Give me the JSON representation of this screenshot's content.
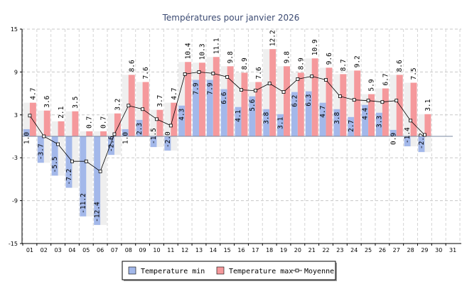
{
  "chart_data": {
    "type": "bar",
    "title": "Températures pour janvier 2026",
    "xlabel": "",
    "ylabel": "",
    "categories": [
      "01",
      "02",
      "03",
      "04",
      "05",
      "06",
      "07",
      "08",
      "09",
      "10",
      "11",
      "12",
      "13",
      "14",
      "15",
      "16",
      "17",
      "18",
      "19",
      "20",
      "21",
      "22",
      "23",
      "24",
      "25",
      "26",
      "27",
      "28",
      "29",
      "30",
      "31"
    ],
    "ylim": [
      -15,
      15
    ],
    "yticks": [
      -15,
      -9,
      -3,
      3,
      9,
      15
    ],
    "grid": true,
    "legend_position": "bottom",
    "series": [
      {
        "name": "Temperature min",
        "type": "bar",
        "color": "#a3b8ea",
        "values": [
          1.0,
          -3.7,
          -5.5,
          -7.2,
          -11.2,
          -12.4,
          -2.6,
          1.0,
          2.3,
          -1.5,
          -2.0,
          4.3,
          7.9,
          7.9,
          6.6,
          4.1,
          5.6,
          3.8,
          3.1,
          6.2,
          6.3,
          4.7,
          3.8,
          2.7,
          4.4,
          3.3,
          0.9,
          -1.4,
          -2.2,
          null,
          null
        ]
      },
      {
        "name": "Temperature max",
        "type": "bar",
        "color": "#f5999c",
        "values": [
          4.7,
          3.6,
          2.1,
          3.5,
          0.7,
          0.7,
          3.2,
          8.6,
          7.6,
          3.7,
          4.7,
          10.4,
          10.3,
          11.1,
          9.8,
          8.9,
          7.6,
          12.2,
          9.8,
          8.9,
          10.9,
          9.6,
          8.7,
          9.2,
          5.9,
          6.7,
          8.6,
          7.5,
          3.1,
          null,
          null
        ]
      },
      {
        "name": "Moyenne",
        "type": "line",
        "color": "#000000",
        "values": [
          2.9,
          0.0,
          -1.1,
          -3.5,
          -3.5,
          -4.9,
          0.3,
          4.3,
          3.8,
          2.4,
          1.5,
          8.7,
          9.0,
          8.8,
          8.3,
          6.5,
          6.4,
          7.4,
          6.2,
          8.0,
          8.4,
          7.9,
          5.6,
          5.1,
          5.0,
          4.8,
          5.0,
          2.2,
          0.2,
          null,
          null
        ]
      }
    ]
  }
}
